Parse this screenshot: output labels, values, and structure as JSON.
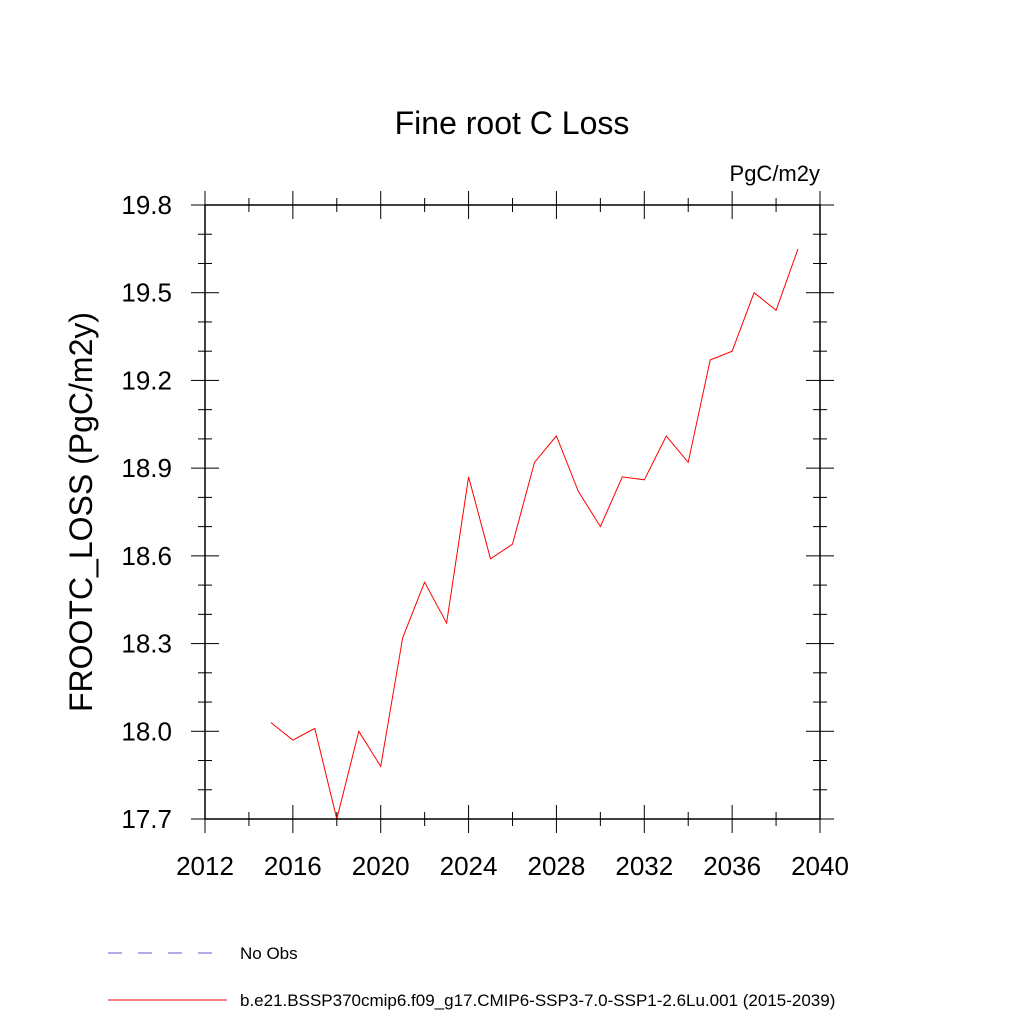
{
  "chart_data": {
    "type": "line",
    "title": "Fine root C Loss",
    "units_label": "PgC/m2y",
    "ylabel": "FROOTC_LOSS  (PgC/m2y)",
    "xlabel": "",
    "xlim": [
      2012,
      2040
    ],
    "ylim": [
      17.7,
      19.8
    ],
    "xticks": [
      "2012",
      "2016",
      "2020",
      "2024",
      "2028",
      "2032",
      "2036",
      "2040"
    ],
    "yticks": [
      "17.7",
      "18.0",
      "18.3",
      "18.6",
      "18.9",
      "19.2",
      "19.5",
      "19.8"
    ],
    "grid": false,
    "legend_position": "bottom",
    "series": [
      {
        "name": "No Obs",
        "color": "#6a5acd",
        "dash": "dashed",
        "x": [],
        "y": []
      },
      {
        "name": "b.e21.BSSP370cmip6.f09_g17.CMIP6-SSP3-7.0-SSP1-2.6Lu.001 (2015-2039)",
        "color": "#ff0000",
        "dash": "solid",
        "x": [
          2015,
          2016,
          2017,
          2018,
          2019,
          2020,
          2021,
          2022,
          2023,
          2024,
          2025,
          2026,
          2027,
          2028,
          2029,
          2030,
          2031,
          2032,
          2033,
          2034,
          2035,
          2036,
          2037,
          2038,
          2039
        ],
        "y": [
          18.03,
          17.97,
          18.01,
          17.7,
          18.0,
          17.88,
          18.32,
          18.51,
          18.37,
          18.87,
          18.59,
          18.64,
          18.92,
          19.01,
          18.82,
          18.7,
          18.87,
          18.86,
          19.01,
          18.92,
          19.27,
          19.3,
          19.5,
          19.44,
          19.65
        ]
      }
    ]
  }
}
